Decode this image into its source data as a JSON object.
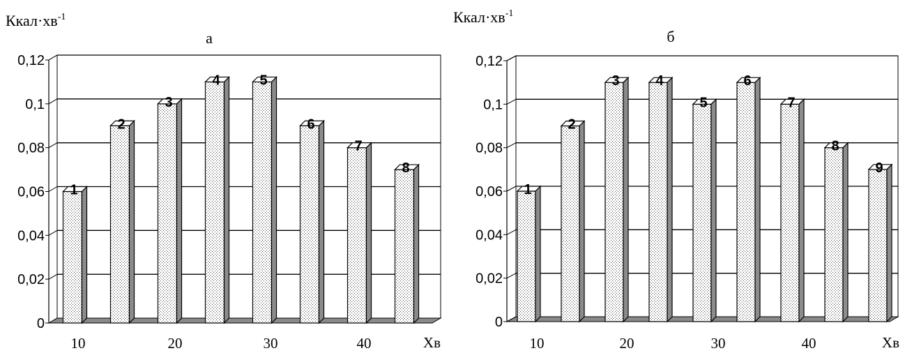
{
  "chart_data": [
    {
      "type": "bar",
      "panel_label": "а",
      "ylabel": "Ккал·хв",
      "ylabel_sup": "-1",
      "xlabel": "Хв",
      "ylim": [
        0,
        0.12
      ],
      "y_ticks": [
        "0",
        "0,02",
        "0,04",
        "0,06",
        "0,08",
        "0,1",
        "0,12"
      ],
      "x_ticks": [
        "10",
        "20",
        "30",
        "40"
      ],
      "categories": [
        "1",
        "2",
        "3",
        "4",
        "5",
        "6",
        "7",
        "8"
      ],
      "values": [
        0.06,
        0.09,
        0.1,
        0.11,
        0.11,
        0.09,
        0.08,
        0.07
      ],
      "grid": true,
      "bar_style": "3d-dotted"
    },
    {
      "type": "bar",
      "panel_label": "б",
      "ylabel": "Ккал·хв",
      "ylabel_sup": "-1",
      "xlabel": "Хв",
      "ylim": [
        0,
        0.12
      ],
      "y_ticks": [
        "0",
        "0,02",
        "0,04",
        "0,06",
        "0,08",
        "0,1",
        "0,12"
      ],
      "x_ticks": [
        "10",
        "20",
        "30",
        "40"
      ],
      "categories": [
        "1",
        "2",
        "3",
        "4",
        "5",
        "6",
        "7",
        "8",
        "9"
      ],
      "values": [
        0.06,
        0.09,
        0.11,
        0.11,
        0.1,
        0.11,
        0.1,
        0.08,
        0.07
      ],
      "grid": true,
      "bar_style": "3d-dotted"
    }
  ]
}
